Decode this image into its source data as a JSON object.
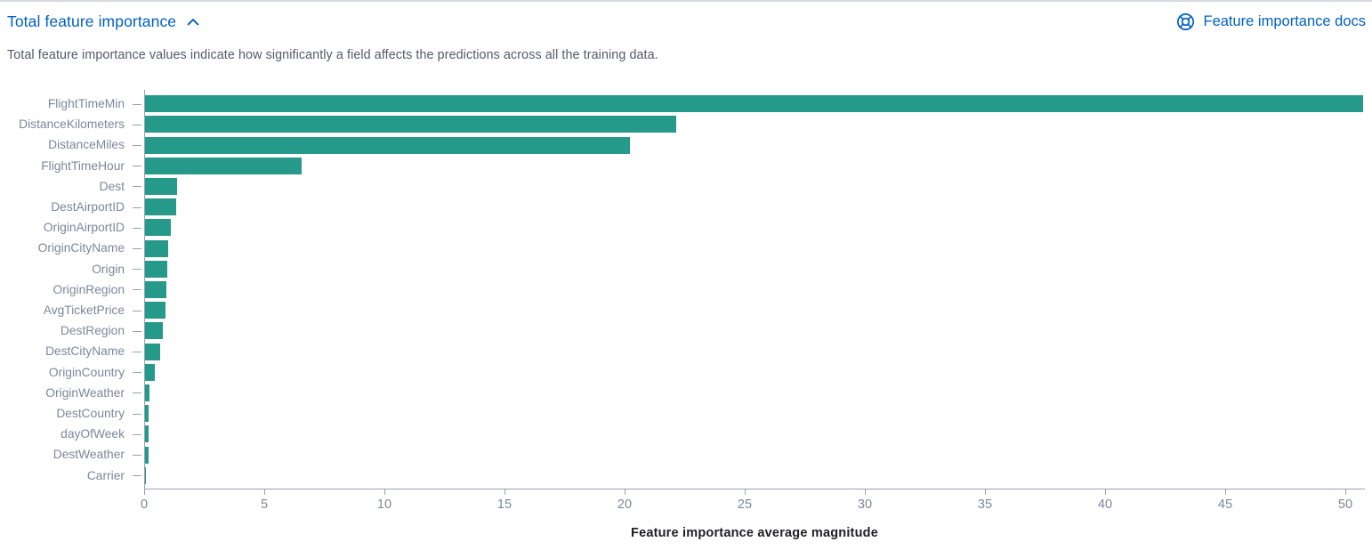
{
  "header": {
    "title": "Total feature importance",
    "docs_link": "Feature importance docs"
  },
  "description": "Total feature importance values indicate how significantly a field affects the predictions across all the training data.",
  "colors": {
    "accent": "#0061c4",
    "bar": "#259a8b",
    "axis_line": "#98a2b3",
    "axis_text": "#7d879c"
  },
  "chart_data": {
    "type": "bar",
    "orientation": "horizontal",
    "title": "Total feature importance",
    "xlabel": "Feature importance average magnitude",
    "ylabel": "",
    "xlim": [
      0,
      50
    ],
    "x_ticks": [
      0,
      5,
      10,
      15,
      20,
      25,
      30,
      35,
      40,
      45,
      50
    ],
    "grid": false,
    "legend": false,
    "categories": [
      "FlightTimeMin",
      "DistanceKilometers",
      "DistanceMiles",
      "FlightTimeHour",
      "Dest",
      "DestAirportID",
      "OriginAirportID",
      "OriginCityName",
      "Origin",
      "OriginRegion",
      "AvgTicketPrice",
      "DestRegion",
      "DestCityName",
      "OriginCountry",
      "OriginWeather",
      "DestCountry",
      "dayOfWeek",
      "DestWeather",
      "Carrier"
    ],
    "values": [
      50.7,
      22.1,
      20.2,
      6.5,
      1.33,
      1.3,
      1.07,
      0.96,
      0.93,
      0.89,
      0.85,
      0.73,
      0.63,
      0.42,
      0.19,
      0.15,
      0.15,
      0.13,
      0.04
    ]
  }
}
